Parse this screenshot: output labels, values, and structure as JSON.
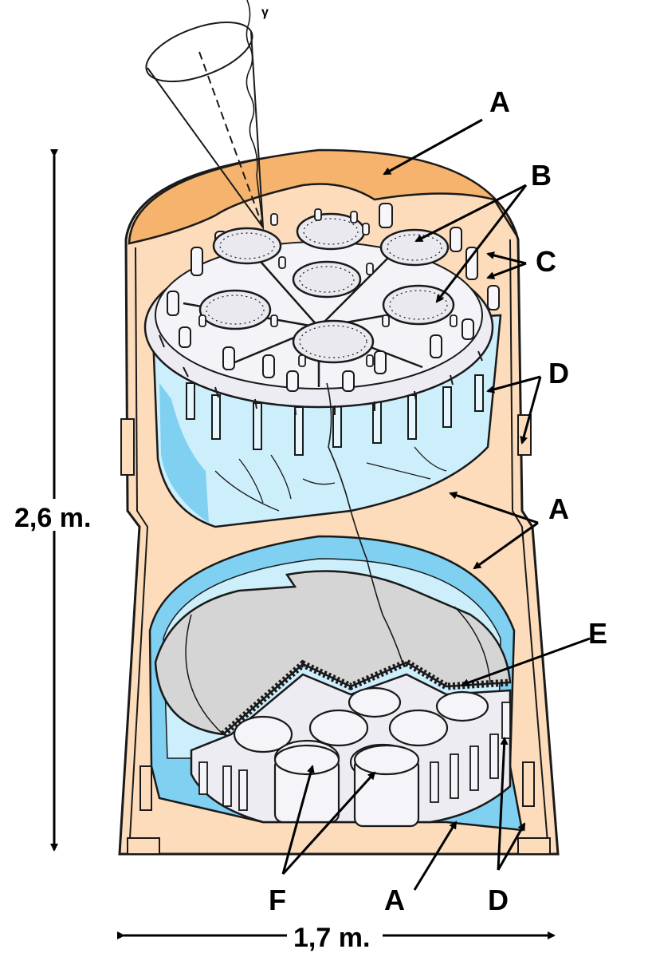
{
  "labels": {
    "a_top": "A",
    "b": "B",
    "c": "C",
    "d_upper": "D",
    "a_mid": "A",
    "e": "E",
    "f": "F",
    "a_bottom": "A",
    "d_lower": "D",
    "gamma": "γ"
  },
  "dimensions": {
    "height": "2,6 m.",
    "width": "1,7 m."
  },
  "colors": {
    "orange_dome": "#f5b36e",
    "peach_body": "#fcdcbb",
    "blue_tank": "#cdeefb",
    "blue_dark": "#7fd0f1",
    "grey_disk": "#d5d5d5",
    "module_fill": "#ececf2",
    "line": "#1a1a1a"
  }
}
